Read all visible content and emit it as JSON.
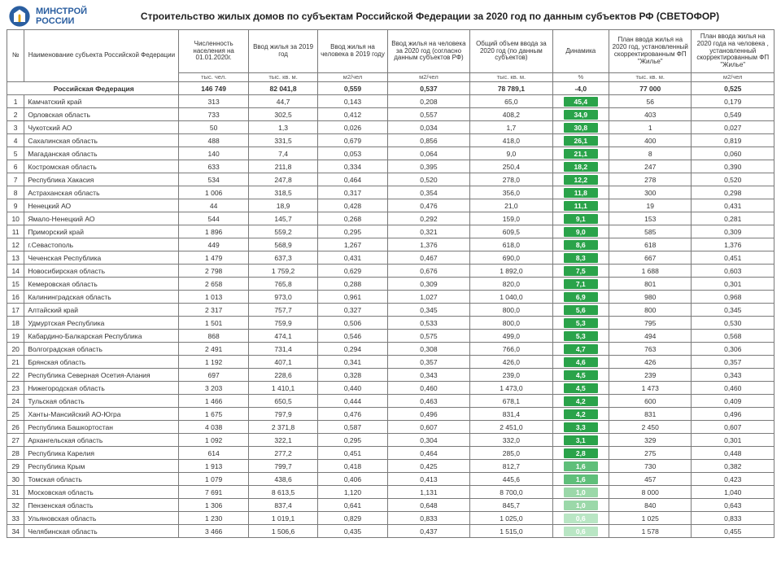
{
  "branding": {
    "line1": "МИНСТРОЙ",
    "line2": "РОССИИ",
    "emblem_color": "#2a5ea0",
    "emblem_accent": "#e0a000"
  },
  "title": "Строительство жилых домов по субъектам Российской Федерации за 2020 год по данным субъектов РФ (СВЕТОФОР)",
  "columns": {
    "idx": "№",
    "name": "Наименование субъекта Российской Федерации",
    "pop": "Численность населения на 01.01.2020г.",
    "v2019": "Ввод жилья за 2019 год",
    "pc2019": "Ввод жилья на человека в 2019 году",
    "pc2020": "Ввод жилья на человека за 2020 год (согласно данным субъектов РФ)",
    "v2020": "Общий объем ввода за 2020 год (по данным субъектов)",
    "dyn": "Динамика",
    "plan": "План ввода жилья на 2020 год, установленный скорректированным ФП \"Жилье\"",
    "planpc": "План ввода жилья на 2020 года на человека , установленный скорректированным ФП \"Жилье\""
  },
  "units": {
    "pop": "тыс. чел.",
    "v2019": "тыс. кв. м.",
    "pc2019": "м2/чел",
    "pc2020": "м2/чел",
    "v2020": "тыс. кв. м.",
    "dyn": "%",
    "plan": "тыс. кв. м.",
    "planpc": "м2/чел"
  },
  "total": {
    "name": "Российская Федерация",
    "pop": "146 749",
    "v2019": "82 041,8",
    "pc2019": "0,559",
    "pc2020": "0,537",
    "v2020": "78 789,1",
    "dyn": "-4,0",
    "dyn_bg": "#ffffff",
    "dyn_fg": "#333333",
    "plan": "77 000",
    "planpc": "0,525"
  },
  "rows": [
    {
      "idx": "1",
      "name": "Камчатский край",
      "pop": "313",
      "v2019": "44,7",
      "pc2019": "0,143",
      "pc2020": "0,208",
      "v2020": "65,0",
      "dyn": "45,4",
      "dyn_bg": "#2aa34a",
      "plan": "56",
      "planpc": "0,179"
    },
    {
      "idx": "2",
      "name": "Орловская область",
      "pop": "733",
      "v2019": "302,5",
      "pc2019": "0,412",
      "pc2020": "0,557",
      "v2020": "408,2",
      "dyn": "34,9",
      "dyn_bg": "#2aa34a",
      "plan": "403",
      "planpc": "0,549"
    },
    {
      "idx": "3",
      "name": "Чукотский АО",
      "pop": "50",
      "v2019": "1,3",
      "pc2019": "0,026",
      "pc2020": "0,034",
      "v2020": "1,7",
      "dyn": "30,8",
      "dyn_bg": "#2aa34a",
      "plan": "1",
      "planpc": "0,027"
    },
    {
      "idx": "4",
      "name": "Сахалинская область",
      "pop": "488",
      "v2019": "331,5",
      "pc2019": "0,679",
      "pc2020": "0,856",
      "v2020": "418,0",
      "dyn": "26,1",
      "dyn_bg": "#2aa34a",
      "plan": "400",
      "planpc": "0,819"
    },
    {
      "idx": "5",
      "name": "Магаданская область",
      "pop": "140",
      "v2019": "7,4",
      "pc2019": "0,053",
      "pc2020": "0,064",
      "v2020": "9,0",
      "dyn": "21,1",
      "dyn_bg": "#2aa34a",
      "plan": "8",
      "planpc": "0,060"
    },
    {
      "idx": "6",
      "name": "Костромская область",
      "pop": "633",
      "v2019": "211,8",
      "pc2019": "0,334",
      "pc2020": "0,395",
      "v2020": "250,4",
      "dyn": "18,2",
      "dyn_bg": "#2aa34a",
      "plan": "247",
      "planpc": "0,390"
    },
    {
      "idx": "7",
      "name": "Республика Хакасия",
      "pop": "534",
      "v2019": "247,8",
      "pc2019": "0,464",
      "pc2020": "0,520",
      "v2020": "278,0",
      "dyn": "12,2",
      "dyn_bg": "#2aa34a",
      "plan": "278",
      "planpc": "0,520"
    },
    {
      "idx": "8",
      "name": "Астраханская область",
      "pop": "1 006",
      "v2019": "318,5",
      "pc2019": "0,317",
      "pc2020": "0,354",
      "v2020": "356,0",
      "dyn": "11,8",
      "dyn_bg": "#2aa34a",
      "plan": "300",
      "planpc": "0,298"
    },
    {
      "idx": "9",
      "name": "Ненецкий АО",
      "pop": "44",
      "v2019": "18,9",
      "pc2019": "0,428",
      "pc2020": "0,476",
      "v2020": "21,0",
      "dyn": "11,1",
      "dyn_bg": "#2aa34a",
      "plan": "19",
      "planpc": "0,431"
    },
    {
      "idx": "10",
      "name": "Ямало-Ненецкий АО",
      "pop": "544",
      "v2019": "145,7",
      "pc2019": "0,268",
      "pc2020": "0,292",
      "v2020": "159,0",
      "dyn": "9,1",
      "dyn_bg": "#2aa34a",
      "plan": "153",
      "planpc": "0,281"
    },
    {
      "idx": "11",
      "name": "Приморский край",
      "pop": "1 896",
      "v2019": "559,2",
      "pc2019": "0,295",
      "pc2020": "0,321",
      "v2020": "609,5",
      "dyn": "9,0",
      "dyn_bg": "#2aa34a",
      "plan": "585",
      "planpc": "0,309"
    },
    {
      "idx": "12",
      "name": "г.Севастополь",
      "pop": "449",
      "v2019": "568,9",
      "pc2019": "1,267",
      "pc2020": "1,376",
      "v2020": "618,0",
      "dyn": "8,6",
      "dyn_bg": "#2aa34a",
      "plan": "618",
      "planpc": "1,376"
    },
    {
      "idx": "13",
      "name": "Чеченская Республика",
      "pop": "1 479",
      "v2019": "637,3",
      "pc2019": "0,431",
      "pc2020": "0,467",
      "v2020": "690,0",
      "dyn": "8,3",
      "dyn_bg": "#2aa34a",
      "plan": "667",
      "planpc": "0,451"
    },
    {
      "idx": "14",
      "name": "Новосибирская область",
      "pop": "2 798",
      "v2019": "1 759,2",
      "pc2019": "0,629",
      "pc2020": "0,676",
      "v2020": "1 892,0",
      "dyn": "7,5",
      "dyn_bg": "#2aa34a",
      "plan": "1 688",
      "planpc": "0,603"
    },
    {
      "idx": "15",
      "name": "Кемеровская область",
      "pop": "2 658",
      "v2019": "765,8",
      "pc2019": "0,288",
      "pc2020": "0,309",
      "v2020": "820,0",
      "dyn": "7,1",
      "dyn_bg": "#2aa34a",
      "plan": "801",
      "planpc": "0,301"
    },
    {
      "idx": "16",
      "name": "Калининградская область",
      "pop": "1 013",
      "v2019": "973,0",
      "pc2019": "0,961",
      "pc2020": "1,027",
      "v2020": "1 040,0",
      "dyn": "6,9",
      "dyn_bg": "#2aa34a",
      "plan": "980",
      "planpc": "0,968"
    },
    {
      "idx": "17",
      "name": "Алтайский край",
      "pop": "2 317",
      "v2019": "757,7",
      "pc2019": "0,327",
      "pc2020": "0,345",
      "v2020": "800,0",
      "dyn": "5,6",
      "dyn_bg": "#2aa34a",
      "plan": "800",
      "planpc": "0,345"
    },
    {
      "idx": "18",
      "name": "Удмуртская Республика",
      "pop": "1 501",
      "v2019": "759,9",
      "pc2019": "0,506",
      "pc2020": "0,533",
      "v2020": "800,0",
      "dyn": "5,3",
      "dyn_bg": "#2aa34a",
      "plan": "795",
      "planpc": "0,530"
    },
    {
      "idx": "19",
      "name": "Кабардино-Балкарская Республика",
      "pop": "868",
      "v2019": "474,1",
      "pc2019": "0,546",
      "pc2020": "0,575",
      "v2020": "499,0",
      "dyn": "5,3",
      "dyn_bg": "#2aa34a",
      "plan": "494",
      "planpc": "0,568"
    },
    {
      "idx": "20",
      "name": "Волгоградская область",
      "pop": "2 491",
      "v2019": "731,4",
      "pc2019": "0,294",
      "pc2020": "0,308",
      "v2020": "766,0",
      "dyn": "4,7",
      "dyn_bg": "#2aa34a",
      "plan": "763",
      "planpc": "0,306"
    },
    {
      "idx": "21",
      "name": "Брянская область",
      "pop": "1 192",
      "v2019": "407,1",
      "pc2019": "0,341",
      "pc2020": "0,357",
      "v2020": "426,0",
      "dyn": "4,6",
      "dyn_bg": "#2aa34a",
      "plan": "426",
      "planpc": "0,357"
    },
    {
      "idx": "22",
      "name": "Республика Северная Осетия-Алания",
      "pop": "697",
      "v2019": "228,6",
      "pc2019": "0,328",
      "pc2020": "0,343",
      "v2020": "239,0",
      "dyn": "4,5",
      "dyn_bg": "#2aa34a",
      "plan": "239",
      "planpc": "0,343"
    },
    {
      "idx": "23",
      "name": "Нижегородская область",
      "pop": "3 203",
      "v2019": "1 410,1",
      "pc2019": "0,440",
      "pc2020": "0,460",
      "v2020": "1 473,0",
      "dyn": "4,5",
      "dyn_bg": "#2aa34a",
      "plan": "1 473",
      "planpc": "0,460"
    },
    {
      "idx": "24",
      "name": "Тульская область",
      "pop": "1 466",
      "v2019": "650,5",
      "pc2019": "0,444",
      "pc2020": "0,463",
      "v2020": "678,1",
      "dyn": "4,2",
      "dyn_bg": "#2aa34a",
      "plan": "600",
      "planpc": "0,409"
    },
    {
      "idx": "25",
      "name": "Ханты-Мансийский АО-Югра",
      "pop": "1 675",
      "v2019": "797,9",
      "pc2019": "0,476",
      "pc2020": "0,496",
      "v2020": "831,4",
      "dyn": "4,2",
      "dyn_bg": "#2aa34a",
      "plan": "831",
      "planpc": "0,496"
    },
    {
      "idx": "26",
      "name": "Республика Башкортостан",
      "pop": "4 038",
      "v2019": "2 371,8",
      "pc2019": "0,587",
      "pc2020": "0,607",
      "v2020": "2 451,0",
      "dyn": "3,3",
      "dyn_bg": "#2aa34a",
      "plan": "2 450",
      "planpc": "0,607"
    },
    {
      "idx": "27",
      "name": "Архангельская область",
      "pop": "1 092",
      "v2019": "322,1",
      "pc2019": "0,295",
      "pc2020": "0,304",
      "v2020": "332,0",
      "dyn": "3,1",
      "dyn_bg": "#2aa34a",
      "plan": "329",
      "planpc": "0,301"
    },
    {
      "idx": "28",
      "name": "Республика Карелия",
      "pop": "614",
      "v2019": "277,2",
      "pc2019": "0,451",
      "pc2020": "0,464",
      "v2020": "285,0",
      "dyn": "2,8",
      "dyn_bg": "#2aa34a",
      "plan": "275",
      "planpc": "0,448"
    },
    {
      "idx": "29",
      "name": "Республика Крым",
      "pop": "1 913",
      "v2019": "799,7",
      "pc2019": "0,418",
      "pc2020": "0,425",
      "v2020": "812,7",
      "dyn": "1,6",
      "dyn_bg": "#5fbf7a",
      "plan": "730",
      "planpc": "0,382"
    },
    {
      "idx": "30",
      "name": "Томская область",
      "pop": "1 079",
      "v2019": "438,6",
      "pc2019": "0,406",
      "pc2020": "0,413",
      "v2020": "445,6",
      "dyn": "1,6",
      "dyn_bg": "#5fbf7a",
      "plan": "457",
      "planpc": "0,423"
    },
    {
      "idx": "31",
      "name": "Московская область",
      "pop": "7 691",
      "v2019": "8 613,5",
      "pc2019": "1,120",
      "pc2020": "1,131",
      "v2020": "8 700,0",
      "dyn": "1,0",
      "dyn_bg": "#9bd8a9",
      "plan": "8 000",
      "planpc": "1,040"
    },
    {
      "idx": "32",
      "name": "Пензенская область",
      "pop": "1 306",
      "v2019": "837,4",
      "pc2019": "0,641",
      "pc2020": "0,648",
      "v2020": "845,7",
      "dyn": "1,0",
      "dyn_bg": "#9bd8a9",
      "plan": "840",
      "planpc": "0,643"
    },
    {
      "idx": "33",
      "name": "Ульяновская область",
      "pop": "1 230",
      "v2019": "1 019,1",
      "pc2019": "0,829",
      "pc2020": "0,833",
      "v2020": "1 025,0",
      "dyn": "0,6",
      "dyn_bg": "#b9e6c4",
      "plan": "1 025",
      "planpc": "0,833"
    },
    {
      "idx": "34",
      "name": "Челябинская область",
      "pop": "3 466",
      "v2019": "1 506,6",
      "pc2019": "0,435",
      "pc2020": "0,437",
      "v2020": "1 515,0",
      "dyn": "0,6",
      "dyn_bg": "#b9e6c4",
      "plan": "1 578",
      "planpc": "0,455"
    }
  ]
}
